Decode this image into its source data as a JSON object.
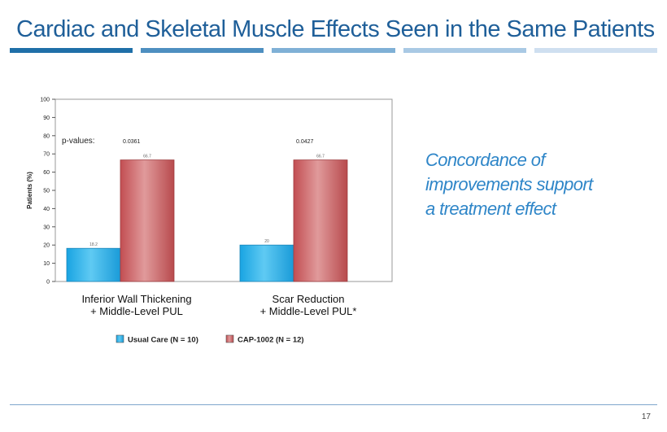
{
  "slide": {
    "title": "Cardiac and Skeletal Muscle Effects Seen in the Same Patients",
    "callout_lines": [
      "Concordance of",
      "improvements support",
      "a treatment effect"
    ],
    "page_number": "17",
    "title_bar_colors": [
      "#1f6fa8",
      "#4e8fc0",
      "#7fb0d6",
      "#a9c9e4",
      "#cfdff0"
    ]
  },
  "chart_data": {
    "type": "bar",
    "ylabel": "Patients (%)",
    "ylim": [
      0,
      100
    ],
    "yticks": [
      0,
      10,
      20,
      30,
      40,
      50,
      60,
      70,
      80,
      90,
      100
    ],
    "categories": [
      [
        "Inferior Wall Thickening",
        "+ Middle-Level  PUL"
      ],
      [
        "Scar Reduction",
        "+ Middle-Level  PUL*"
      ]
    ],
    "series": [
      {
        "name": "Usual Care (N = 10)",
        "values": [
          18.2,
          20
        ],
        "labels": [
          "18.2",
          "20"
        ],
        "color": "#29aee6"
      },
      {
        "name": "CAP-1002 (N = 12)",
        "values": [
          66.7,
          66.7
        ],
        "labels": [
          "66.7",
          "66.7"
        ],
        "color": "#c85f61"
      }
    ],
    "pvalue_label": "p-values:",
    "pvalues": [
      "0.0361",
      "0.0427"
    ]
  }
}
